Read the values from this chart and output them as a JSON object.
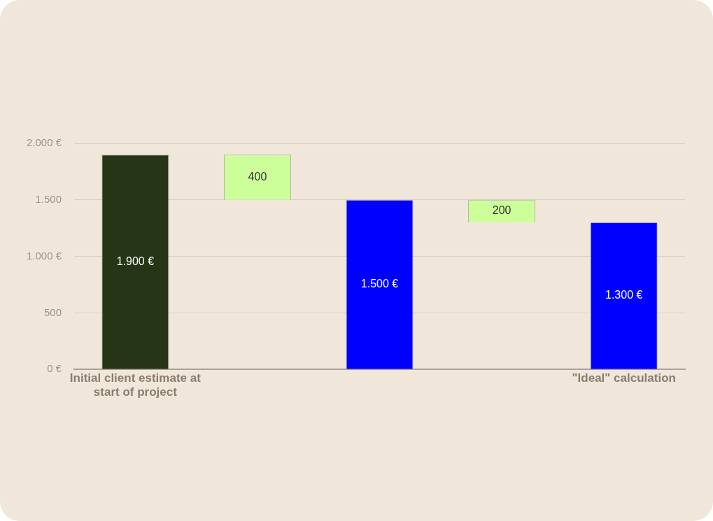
{
  "chart_data": {
    "type": "bar",
    "categories": [
      "Initial client estimate at start of project",
      null,
      null,
      null,
      "\"Ideal\" calculation"
    ],
    "values": [
      1900,
      400,
      1500,
      200,
      1300
    ],
    "base": [
      0,
      1500,
      0,
      1300,
      0
    ],
    "colors": [
      "#253515",
      "#ccff99",
      "#0000ff",
      "#ccff99",
      "#0000ff"
    ],
    "value_labels": [
      "1.900 €",
      "400",
      "1.500 €",
      "200",
      "1.300 €"
    ],
    "ylim": [
      0,
      2000
    ],
    "yticks": [
      {
        "value": 0,
        "label": "0 €"
      },
      {
        "value": 500,
        "label": "500"
      },
      {
        "value": 1000,
        "label": "1.000 €"
      },
      {
        "value": 1500,
        "label": "1.500"
      },
      {
        "value": 2000,
        "label": "2.000 €"
      }
    ],
    "grid": "y",
    "legend": false
  }
}
